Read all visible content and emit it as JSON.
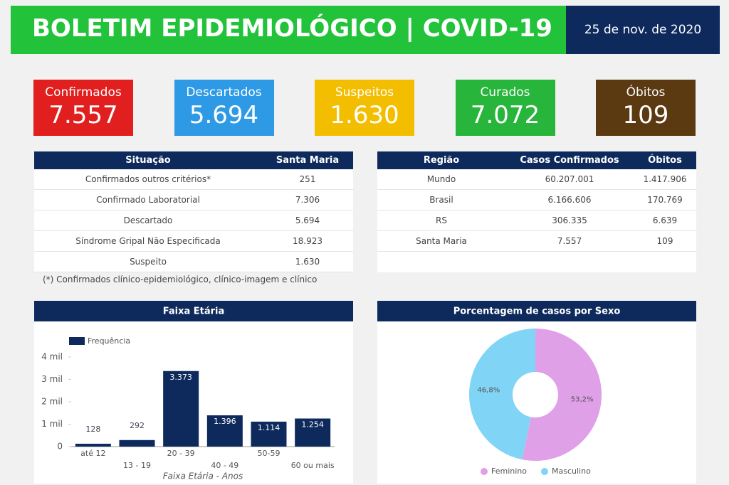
{
  "header": {
    "title": "BOLETIM EPIDEMIOLÓGICO | COVID-19",
    "date": "25 de nov. de 2020"
  },
  "cards": [
    {
      "label": "Confirmados",
      "value": "7.557",
      "color": "#e11f1f"
    },
    {
      "label": "Descartados",
      "value": "5.694",
      "color": "#2e9ae6"
    },
    {
      "label": "Suspeitos",
      "value": "1.630",
      "color": "#f4be00"
    },
    {
      "label": "Curados",
      "value": "7.072",
      "color": "#27b63b"
    },
    {
      "label": "Óbitos",
      "value": "109",
      "color": "#5b3a12"
    }
  ],
  "situacao_table": {
    "columns": [
      "Situação",
      "Santa Maria"
    ],
    "rows": [
      [
        "Confirmados outros critérios*",
        "251"
      ],
      [
        "Confirmado Laboratorial",
        "7.306"
      ],
      [
        "Descartado",
        "5.694"
      ],
      [
        "Síndrome Gripal Não Especificada",
        "18.923"
      ],
      [
        "Suspeito",
        "1.630"
      ]
    ],
    "note": "(*) Confirmados clínico-epidemiológico, clínico-imagem e clínico"
  },
  "regiao_table": {
    "columns": [
      "Região",
      "Casos Confirmados",
      "Óbitos"
    ],
    "rows": [
      [
        "Mundo",
        "60.207.001",
        "1.417.906"
      ],
      [
        "Brasil",
        "6.166.606",
        "170.769"
      ],
      [
        "RS",
        "306.335",
        "6.639"
      ],
      [
        "Santa Maria",
        "7.557",
        "109"
      ]
    ]
  },
  "chart_data": [
    {
      "type": "bar",
      "title": "Faixa Etária",
      "x_label": "Faixa Etária - Anos",
      "categories": [
        "até 12",
        "13 - 19",
        "20 - 39",
        "40 - 49",
        "50-59",
        "60 ou mais"
      ],
      "series": [
        {
          "name": "Frequência",
          "color": "#0e2a5c",
          "values": [
            128,
            292,
            3373,
            1396,
            1114,
            1254
          ],
          "value_labels": [
            "128",
            "292",
            "3.373",
            "1.396",
            "1.114",
            "1.254"
          ]
        }
      ],
      "ylim": [
        0,
        4000
      ],
      "yticks": [
        0,
        {
          "value": 1000,
          "label": "1 mil"
        },
        {
          "value": 2000,
          "label": "2 mil"
        },
        {
          "value": 3000,
          "label": "3 mil"
        },
        {
          "value": 4000,
          "label": "4 mil"
        }
      ]
    },
    {
      "type": "pie",
      "title": "Porcentagem de casos por Sexo",
      "categories": [
        "Feminino",
        "Masculino"
      ],
      "values": [
        53.2,
        46.8
      ],
      "value_labels": [
        "53,2%",
        "46,8%"
      ],
      "colors": [
        "#e0a0e8",
        "#80d4f6"
      ]
    }
  ]
}
